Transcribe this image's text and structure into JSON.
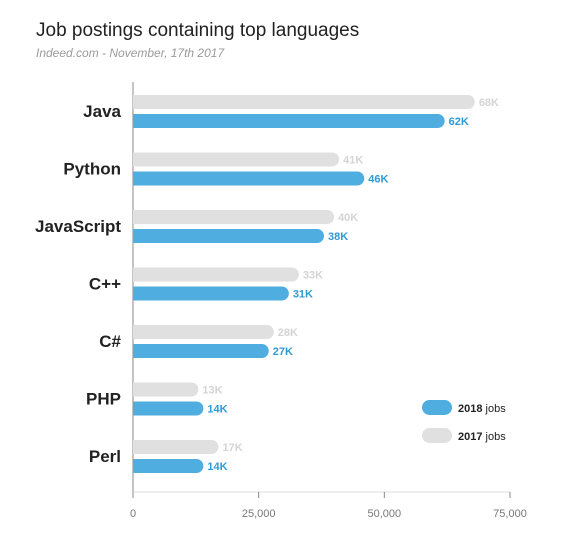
{
  "chart_data": {
    "type": "bar",
    "orientation": "horizontal",
    "title": "Job postings containing top languages",
    "subtitle": "Indeed.com - November, 17th 2017",
    "categories": [
      "Java",
      "Python",
      "JavaScript",
      "C++",
      "C#",
      "PHP",
      "Perl"
    ],
    "series": [
      {
        "name": "2017",
        "color": "#e0e0e0",
        "label_color": "#d4d4d4",
        "values": [
          68000,
          41000,
          40000,
          33000,
          28000,
          13000,
          17000
        ],
        "labels": [
          "68K",
          "41K",
          "40K",
          "33K",
          "28K",
          "13K",
          "17K"
        ]
      },
      {
        "name": "2018",
        "color": "#4faddf",
        "label_color": "#2f9ad6",
        "values": [
          62000,
          46000,
          38000,
          31000,
          27000,
          14000,
          14000
        ],
        "labels": [
          "62K",
          "46K",
          "38K",
          "31K",
          "27K",
          "14K",
          "14K"
        ]
      }
    ],
    "legend": {
      "position": "right",
      "items": [
        {
          "year": "2018",
          "suffix": "jobs",
          "color": "#4faddf"
        },
        {
          "year": "2017",
          "suffix": "jobs",
          "color": "#e0e0e0"
        }
      ]
    },
    "xlim": [
      0,
      75000
    ],
    "xticks": [
      0,
      25000,
      50000,
      75000
    ],
    "xtick_labels": [
      "0",
      "25,000",
      "50,000",
      "75,000"
    ],
    "grid": false
  }
}
